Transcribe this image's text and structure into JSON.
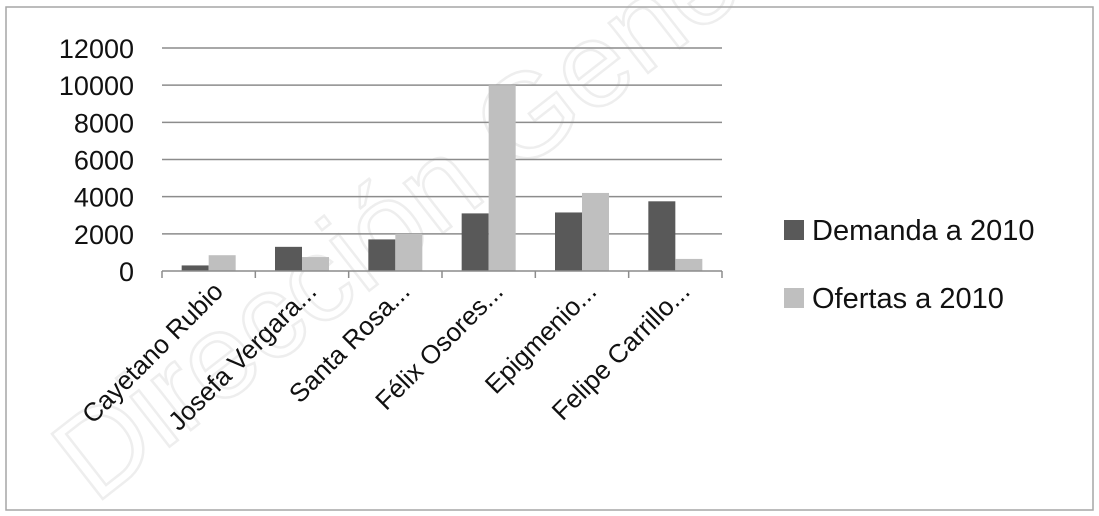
{
  "chart_data": {
    "type": "bar",
    "title": "",
    "xlabel": "",
    "ylabel": "",
    "categories": [
      "Cayetano Rubio",
      "Josefa Vergara...",
      "Santa Rosa...",
      "Félix Osores...",
      "Epigmenio...",
      "Felipe Carrillo..."
    ],
    "series": [
      {
        "name": "Demanda a 2010",
        "values": [
          300,
          1300,
          1700,
          3100,
          3150,
          3750
        ],
        "color": "#595959"
      },
      {
        "name": "Ofertas a 2010",
        "values": [
          850,
          750,
          2000,
          10000,
          4200,
          650
        ],
        "color": "#bfbfbf"
      }
    ],
    "ylim": [
      0,
      12000
    ],
    "yticks": [
      0,
      2000,
      4000,
      6000,
      8000,
      10000,
      12000
    ],
    "grid": true,
    "legend_position": "right"
  },
  "watermark": {
    "text": "Dirección General de",
    "color": "#f2f2f2"
  }
}
